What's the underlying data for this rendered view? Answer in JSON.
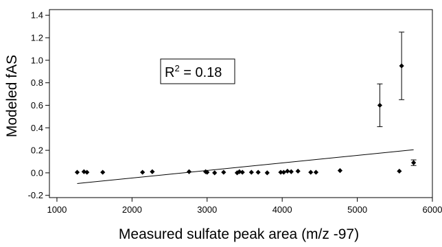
{
  "chart_data": {
    "type": "scatter",
    "title": "",
    "xlabel": "Measured sulfate peak area (m/z -97)",
    "ylabel": "Modeled fAS",
    "xlim": [
      900,
      6000
    ],
    "ylim": [
      -0.22,
      1.45
    ],
    "x_ticks": [
      1000,
      2000,
      3000,
      4000,
      5000,
      6000
    ],
    "y_ticks": [
      -0.2,
      0.0,
      0.2,
      0.4,
      0.6,
      0.8,
      1.0,
      1.2,
      1.4
    ],
    "x_tick_labels": [
      "1000",
      "2000",
      "3000",
      "4000",
      "5000",
      "6000"
    ],
    "y_tick_labels": [
      "-0.2",
      "0.0",
      "0.2",
      "0.4",
      "0.6",
      "0.8",
      "1.0",
      "1.2",
      "1.4"
    ],
    "grid": false,
    "annotation": {
      "text": "R² = 0.18",
      "base": "R",
      "sup": "2",
      "rest": " = 0.18"
    },
    "points": [
      {
        "x": 1270,
        "y": 0.005
      },
      {
        "x": 1360,
        "y": 0.01
      },
      {
        "x": 1400,
        "y": 0.005
      },
      {
        "x": 1610,
        "y": 0.005
      },
      {
        "x": 2140,
        "y": 0.005
      },
      {
        "x": 2270,
        "y": 0.01
      },
      {
        "x": 2760,
        "y": 0.01
      },
      {
        "x": 2980,
        "y": 0.01
      },
      {
        "x": 3000,
        "y": 0.005
      },
      {
        "x": 3100,
        "y": 0.0
      },
      {
        "x": 3220,
        "y": 0.005
      },
      {
        "x": 3400,
        "y": 0.0
      },
      {
        "x": 3430,
        "y": 0.01
      },
      {
        "x": 3470,
        "y": 0.005
      },
      {
        "x": 3590,
        "y": 0.005
      },
      {
        "x": 3680,
        "y": 0.005
      },
      {
        "x": 3800,
        "y": 0.0
      },
      {
        "x": 3980,
        "y": 0.005
      },
      {
        "x": 4020,
        "y": 0.005
      },
      {
        "x": 4070,
        "y": 0.015
      },
      {
        "x": 4120,
        "y": 0.01
      },
      {
        "x": 4210,
        "y": 0.015
      },
      {
        "x": 4380,
        "y": 0.005
      },
      {
        "x": 4450,
        "y": 0.005
      },
      {
        "x": 4770,
        "y": 0.02
      },
      {
        "x": 5300,
        "y": 0.6,
        "err": 0.19
      },
      {
        "x": 5560,
        "y": 0.015
      },
      {
        "x": 5590,
        "y": 0.95,
        "err": 0.3
      },
      {
        "x": 5750,
        "y": 0.09,
        "err": 0.025
      }
    ],
    "fit_line": {
      "x": [
        1270,
        5750
      ],
      "y": [
        -0.095,
        0.205
      ]
    }
  }
}
